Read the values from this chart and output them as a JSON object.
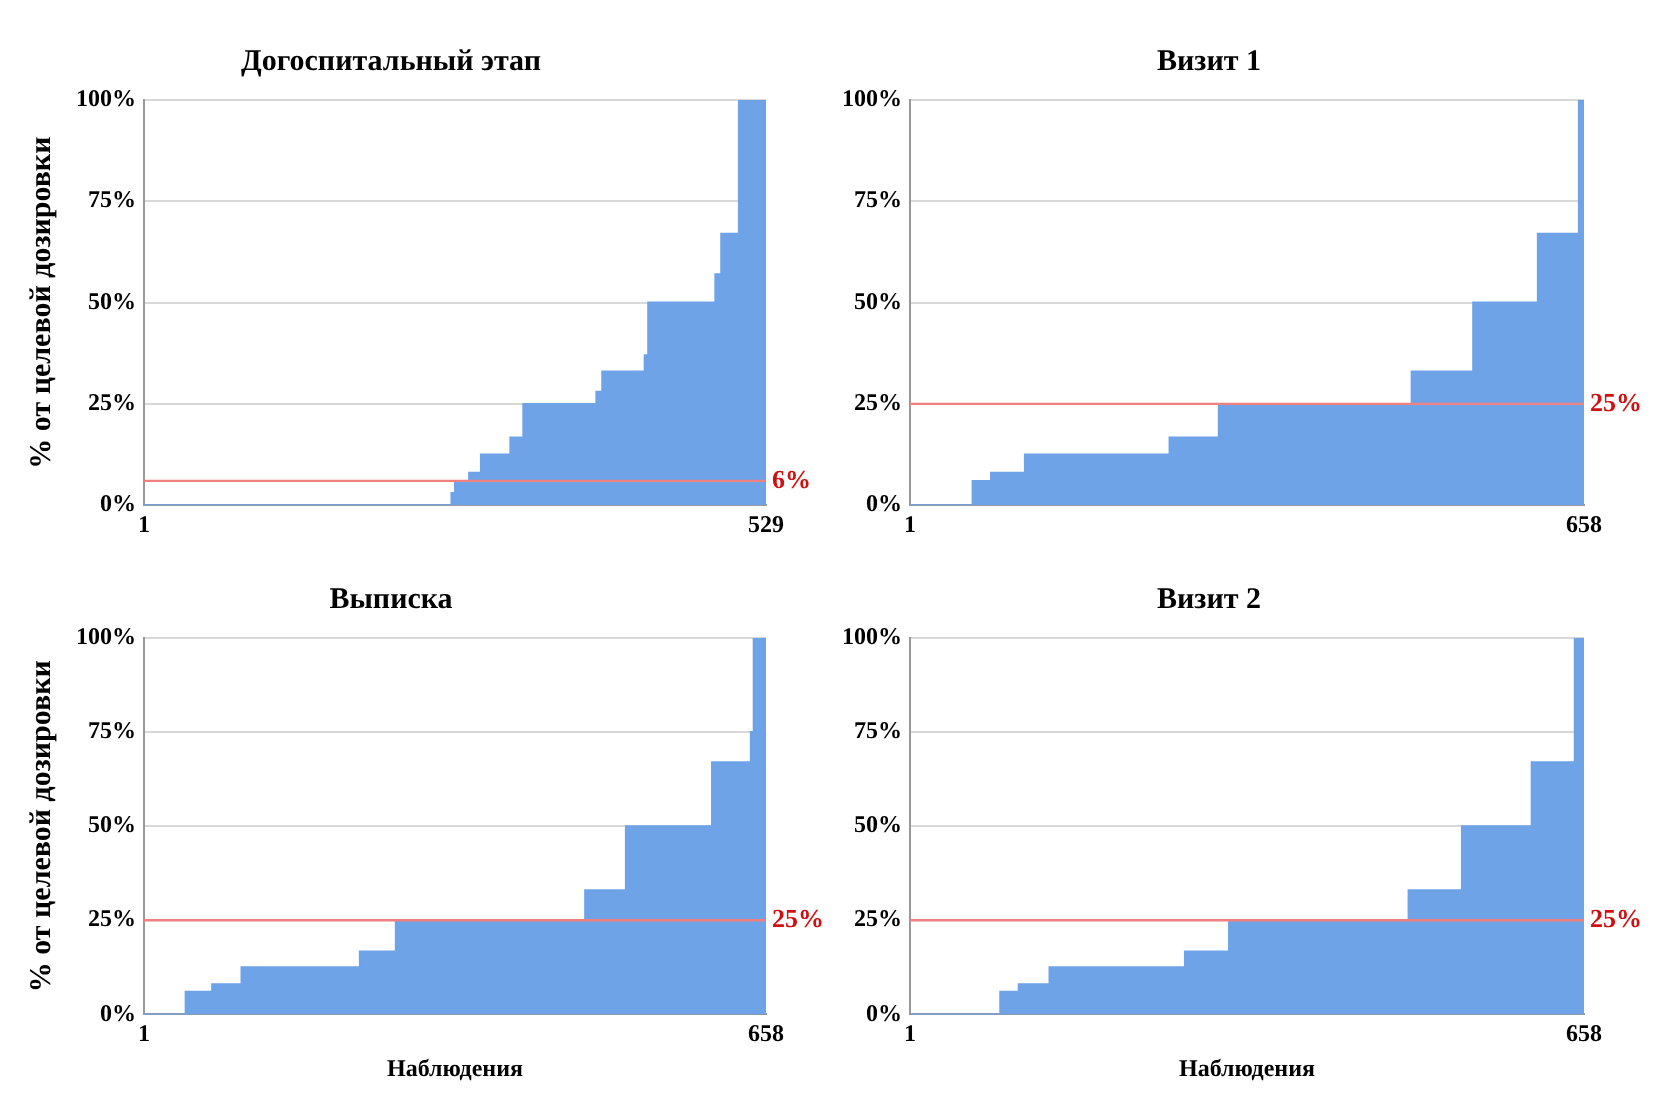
{
  "chart_data": [
    {
      "type": "area",
      "title": "Догоспитальный этап",
      "ylabel": "% от целевой дозировки",
      "x": [
        1,
        262,
        265,
        277,
        287,
        312,
        323,
        385,
        390,
        426,
        429,
        486,
        491,
        506,
        529
      ],
      "values": [
        0,
        3,
        6,
        8,
        12.5,
        16.7,
        25,
        28,
        33,
        37,
        50,
        57,
        67,
        100,
        100
      ],
      "color": "#6ea3e8",
      "xlim": [
        1,
        529
      ],
      "xticks": [
        1,
        529
      ],
      "ylim": [
        0,
        100
      ],
      "yticks": [
        {
          "value": 0,
          "label": "0%"
        },
        {
          "value": 25,
          "label": "25%"
        },
        {
          "value": 50,
          "label": "50%"
        },
        {
          "value": 75,
          "label": "75%"
        },
        {
          "value": 100,
          "label": "100%"
        }
      ],
      "grid": "y",
      "legend": false,
      "marker": "none",
      "ref_lines": [
        {
          "axis": "y",
          "value": 6,
          "label": "6%",
          "color": "#f08080"
        }
      ]
    },
    {
      "type": "area",
      "title": "Визит 1",
      "x": [
        1,
        62,
        80,
        113,
        254,
        302,
        490,
        550,
        613,
        653,
        658
      ],
      "values": [
        0,
        6,
        8,
        12.5,
        16.7,
        25,
        33,
        50,
        67,
        100,
        100
      ],
      "color": "#6ea3e8",
      "xlim": [
        1,
        658
      ],
      "xticks": [
        1,
        658
      ],
      "ylim": [
        0,
        100
      ],
      "yticks": [
        {
          "value": 0,
          "label": "0%"
        },
        {
          "value": 25,
          "label": "25%"
        },
        {
          "value": 50,
          "label": "50%"
        },
        {
          "value": 75,
          "label": "75%"
        },
        {
          "value": 100,
          "label": "100%"
        }
      ],
      "grid": "y",
      "legend": false,
      "marker": "none",
      "ref_lines": [
        {
          "axis": "y",
          "value": 25,
          "label": "25%",
          "color": "#f08080"
        }
      ]
    },
    {
      "type": "area",
      "title": "Выписка",
      "xlabel": "Наблюдения",
      "ylabel": "% от целевой дозировки",
      "x": [
        1,
        45,
        73,
        104,
        229,
        267,
        467,
        510,
        601,
        642,
        645,
        658
      ],
      "values": [
        0,
        6,
        8,
        12.5,
        16.7,
        25,
        33,
        50,
        67,
        75,
        100,
        100
      ],
      "color": "#6ea3e8",
      "xlim": [
        1,
        658
      ],
      "xticks": [
        1,
        658
      ],
      "ylim": [
        0,
        100
      ],
      "yticks": [
        {
          "value": 0,
          "label": "0%"
        },
        {
          "value": 25,
          "label": "25%"
        },
        {
          "value": 50,
          "label": "50%"
        },
        {
          "value": 75,
          "label": "75%"
        },
        {
          "value": 100,
          "label": "100%"
        }
      ],
      "grid": "y",
      "legend": false,
      "marker": "none",
      "ref_lines": [
        {
          "axis": "y",
          "value": 25,
          "label": "25%",
          "color": "#f08080"
        }
      ]
    },
    {
      "type": "area",
      "title": "Визит 2",
      "xlabel": "Наблюдения",
      "x": [
        1,
        89,
        107,
        137,
        269,
        312,
        487,
        539,
        607,
        649,
        658
      ],
      "values": [
        0,
        6,
        8,
        12.5,
        16.7,
        25,
        33,
        50,
        67,
        100,
        100
      ],
      "color": "#6ea3e8",
      "xlim": [
        1,
        658
      ],
      "xticks": [
        1,
        658
      ],
      "ylim": [
        0,
        100
      ],
      "yticks": [
        {
          "value": 0,
          "label": "0%"
        },
        {
          "value": 25,
          "label": "25%"
        },
        {
          "value": 50,
          "label": "50%"
        },
        {
          "value": 75,
          "label": "75%"
        },
        {
          "value": 100,
          "label": "100%"
        }
      ],
      "grid": "y",
      "legend": false,
      "marker": "none",
      "ref_lines": [
        {
          "axis": "y",
          "value": 25,
          "label": "25%",
          "color": "#f08080"
        }
      ]
    }
  ]
}
